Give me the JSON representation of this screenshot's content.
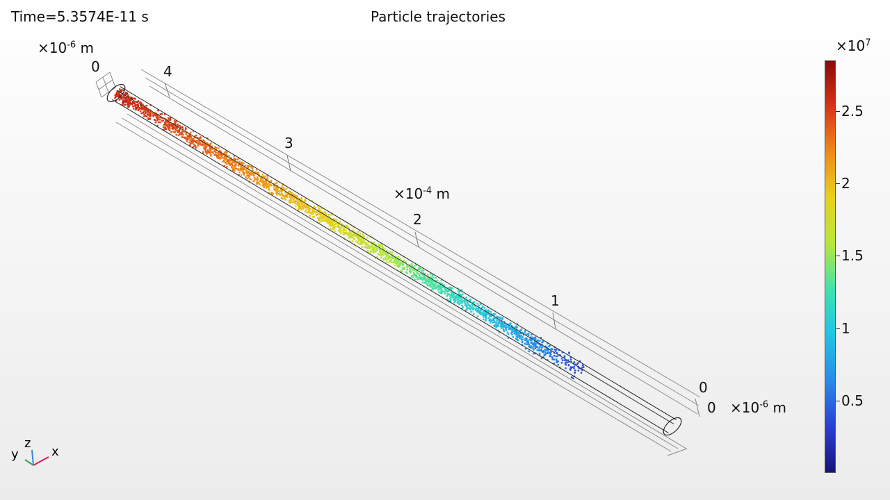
{
  "header": {
    "time_label": "Time=5.3574E-11 s",
    "title": "Particle trajectories"
  },
  "axes": {
    "x_multiplier": "×10-4 m",
    "x_multiplier_base": "×10",
    "x_multiplier_exp": "-4",
    "x_multiplier_unit": "m",
    "x_ticks": [
      {
        "label": "4",
        "value": 4
      },
      {
        "label": "3",
        "value": 3
      },
      {
        "label": "2",
        "value": 2
      },
      {
        "label": "1",
        "value": 1
      }
    ],
    "y_multiplier_base": "×10",
    "y_multiplier_exp": "-6",
    "y_multiplier_unit": "m",
    "y_ticks": [
      {
        "label": "0",
        "value": 0
      }
    ],
    "z_multiplier_base": "×10",
    "z_multiplier_exp": "-6",
    "z_multiplier_unit": "m",
    "z_ticks": [
      {
        "label": "0",
        "value": 0
      }
    ],
    "zero_label_top_left": "0"
  },
  "colorbar": {
    "multiplier_base": "×10",
    "multiplier_exp": "7",
    "ticks": [
      {
        "label": "2.5",
        "value": 2.5
      },
      {
        "label": "2",
        "value": 2.0
      },
      {
        "label": "1.5",
        "value": 1.5
      },
      {
        "label": "1",
        "value": 1.0
      },
      {
        "label": "0.5",
        "value": 0.5
      }
    ],
    "range": [
      0.0,
      2.85
    ],
    "colormap": [
      "#14137a",
      "#2b3fd6",
      "#2a8ae8",
      "#1fc4e6",
      "#3fe3b0",
      "#b8e63a",
      "#e8d21c",
      "#f08a1a",
      "#d8341a",
      "#8a0a0a"
    ]
  },
  "triad": {
    "x": "x",
    "y": "y",
    "z": "z",
    "x_color": "#d81a5a",
    "y_color": "#2fa84f",
    "z_color": "#3a86d8"
  },
  "chart_data": {
    "type": "scatter",
    "title": "Particle trajectories",
    "subtitle": "Time=5.3574E-11 s",
    "xlabel": "",
    "ylabel": "",
    "x_unit_multiplier": "×10-4 m",
    "x_range": [
      0,
      4.45
    ],
    "color_scale_range": [
      0.0,
      2.85
    ],
    "color_scale_multiplier": "×10^7",
    "series": [
      {
        "description": "particle speed vs position along tube",
        "x": [
          4.4,
          4.0,
          3.5,
          3.0,
          2.5,
          2.0,
          1.5,
          1.0,
          0.75
        ],
        "color_value": [
          2.6,
          2.45,
          2.25,
          2.0,
          1.7,
          1.35,
          1.0,
          0.6,
          0.35
        ]
      }
    ]
  }
}
